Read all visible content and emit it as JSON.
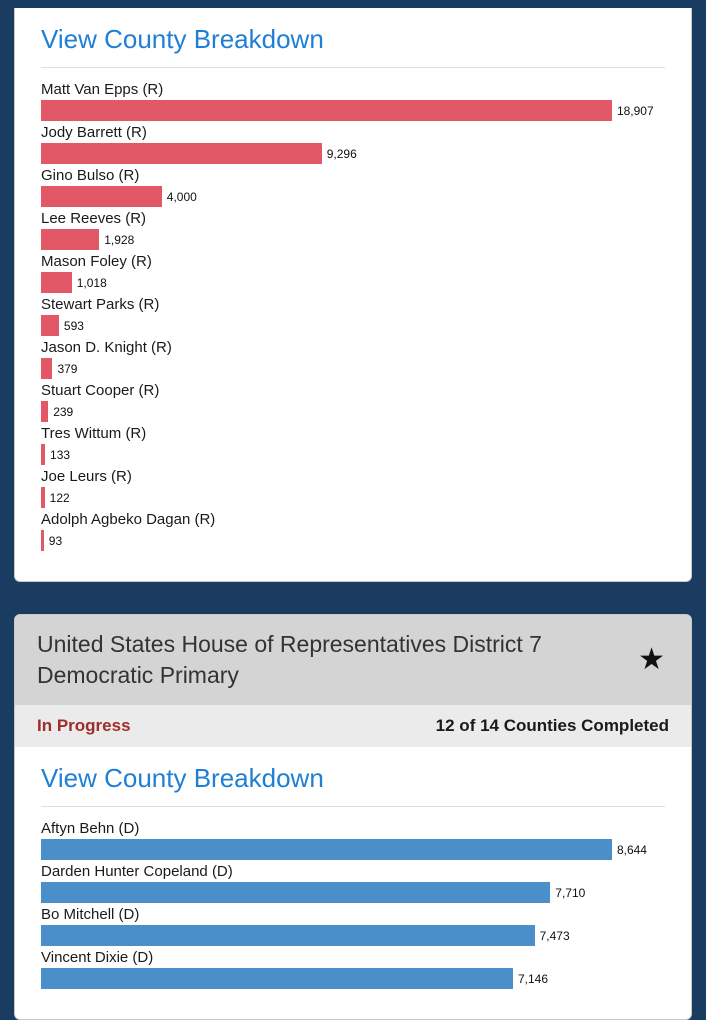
{
  "colors": {
    "page_background": "#1b3c61",
    "link": "#1f7fd6",
    "republican_bar": "#e25866",
    "democratic_bar": "#4a8fc9",
    "status_in_progress": "#a02c2c"
  },
  "republican_card": {
    "breakdown_link": "View County Breakdown"
  },
  "democratic_card": {
    "title": "United States House of Representatives District 7 Democratic Primary",
    "status": "In Progress",
    "counties_completed": "12 of 14 Counties Completed",
    "breakdown_link": "View County Breakdown",
    "star_icon": "★"
  },
  "chart_data": [
    {
      "type": "bar",
      "orientation": "horizontal",
      "bar_color": "#e25866",
      "categories": [
        "Matt Van Epps (R)",
        "Jody Barrett (R)",
        "Gino Bulso (R)",
        "Lee Reeves (R)",
        "Mason Foley (R)",
        "Stewart Parks (R)",
        "Jason D. Knight (R)",
        "Stuart Cooper (R)",
        "Tres Wittum (R)",
        "Joe Leurs (R)",
        "Adolph Agbeko Dagan (R)"
      ],
      "values": [
        18907,
        9296,
        4000,
        1928,
        1018,
        593,
        379,
        239,
        133,
        122,
        93
      ],
      "value_labels": [
        "18,907",
        "9,296",
        "4,000",
        "1,928",
        "1,018",
        "593",
        "379",
        "239",
        "133",
        "122",
        "93"
      ]
    },
    {
      "type": "bar",
      "orientation": "horizontal",
      "bar_color": "#4a8fc9",
      "categories": [
        "Aftyn Behn (D)",
        "Darden Hunter Copeland (D)",
        "Bo Mitchell (D)",
        "Vincent Dixie (D)"
      ],
      "values": [
        8644,
        7710,
        7473,
        7146
      ],
      "value_labels": [
        "8,644",
        "7,710",
        "7,473",
        "7,146"
      ]
    }
  ]
}
